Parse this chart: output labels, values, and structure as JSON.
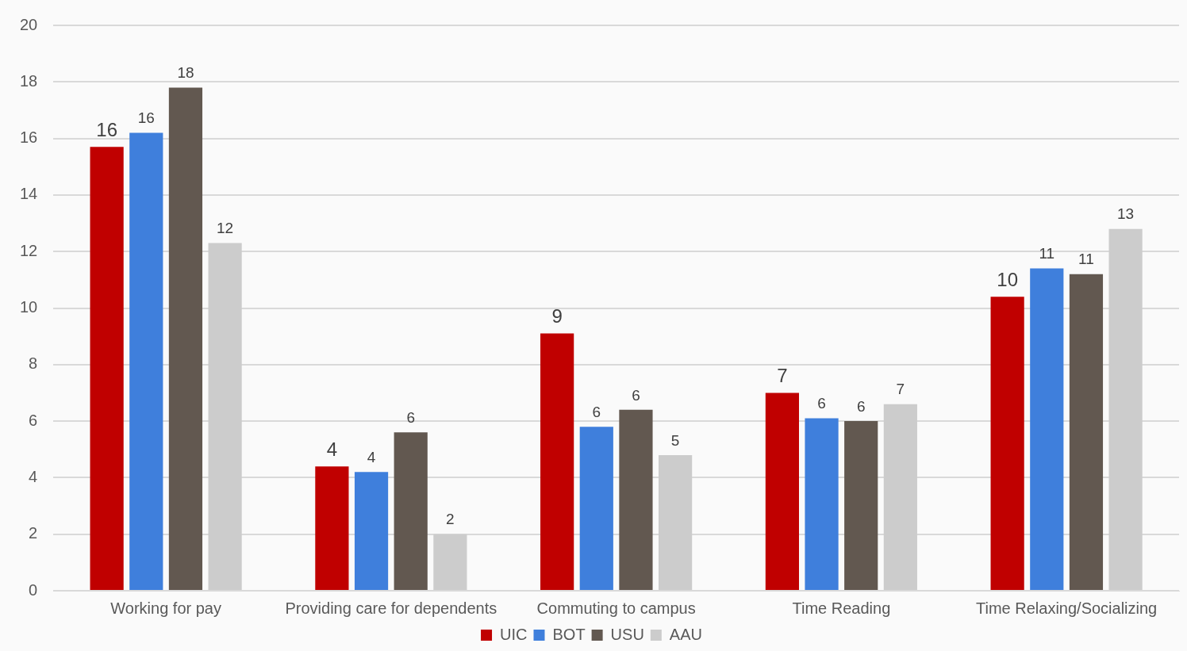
{
  "chart_data": {
    "type": "bar",
    "categories": [
      "Working for pay",
      "Providing care for dependents",
      "Commuting to campus",
      "Time Reading",
      "Time Relaxing/Socializing"
    ],
    "series": [
      {
        "name": "UIC",
        "color": "#c00000",
        "values": [
          15.7,
          4.4,
          9.1,
          7.0,
          10.4
        ],
        "value_labels": [
          "16",
          "4",
          "9",
          "7",
          "10"
        ]
      },
      {
        "name": "BOT",
        "color": "#3f7fdc",
        "values": [
          16.2,
          4.2,
          5.8,
          6.1,
          11.4
        ],
        "value_labels": [
          "16",
          "4",
          "6",
          "6",
          "11"
        ]
      },
      {
        "name": "USU",
        "color": "#625850",
        "values": [
          17.8,
          5.6,
          6.4,
          6.0,
          11.2
        ],
        "value_labels": [
          "18",
          "6",
          "6",
          "6",
          "11"
        ]
      },
      {
        "name": "AAU",
        "color": "#cccccc",
        "values": [
          12.3,
          2.0,
          4.8,
          6.6,
          12.8
        ],
        "value_labels": [
          "12",
          "2",
          "5",
          "7",
          "13"
        ]
      }
    ],
    "ylim": [
      0,
      20
    ],
    "yticks": [
      0,
      2,
      4,
      6,
      8,
      10,
      12,
      14,
      16,
      18,
      20
    ],
    "grid": "y",
    "legend": "bottom"
  }
}
